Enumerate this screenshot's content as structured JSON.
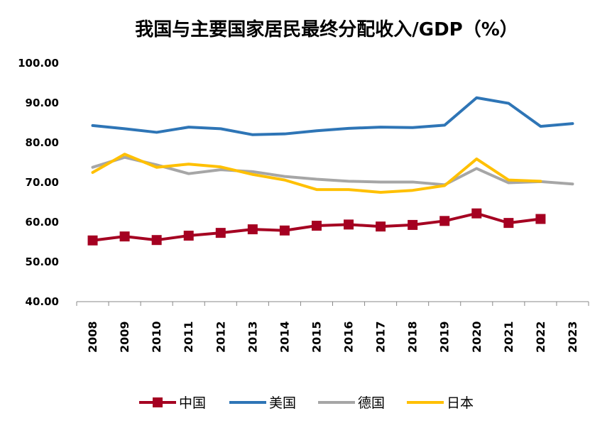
{
  "chart_data": {
    "type": "line",
    "title": "我国与主要国家居民最终分配收入/GDP（%）",
    "xlabel": "",
    "ylabel": "",
    "ylim": [
      40,
      100
    ],
    "yticks": [
      "100.00",
      "90.00",
      "80.00",
      "70.00",
      "60.00",
      "50.00",
      "40.00"
    ],
    "categories": [
      "2008",
      "2009",
      "2010",
      "2011",
      "2012",
      "2013",
      "2014",
      "2015",
      "2016",
      "2017",
      "2018",
      "2019",
      "2020",
      "2021",
      "2022",
      "2023"
    ],
    "legend_position": "bottom",
    "series": [
      {
        "name": "中国",
        "color": "#A50021",
        "marker": "square",
        "values": [
          55.4,
          56.4,
          55.5,
          56.6,
          57.3,
          58.2,
          57.9,
          59.1,
          59.4,
          58.9,
          59.3,
          60.3,
          62.2,
          59.8,
          60.8,
          null
        ]
      },
      {
        "name": "美国",
        "color": "#2E75B6",
        "marker": "none",
        "values": [
          84.3,
          83.5,
          82.6,
          83.9,
          83.5,
          82.0,
          82.2,
          83.0,
          83.6,
          83.9,
          83.8,
          84.4,
          91.3,
          89.9,
          84.1,
          84.8
        ]
      },
      {
        "name": "德国",
        "color": "#A6A6A6",
        "marker": "none",
        "values": [
          73.8,
          76.3,
          74.4,
          72.2,
          73.2,
          72.7,
          71.5,
          70.8,
          70.3,
          70.1,
          70.1,
          69.4,
          73.5,
          69.9,
          70.2,
          69.6
        ]
      },
      {
        "name": "日本",
        "color": "#FFC000",
        "marker": "none",
        "values": [
          72.5,
          77.1,
          73.8,
          74.6,
          73.9,
          72.0,
          70.6,
          68.2,
          68.2,
          67.5,
          68.0,
          69.2,
          75.9,
          70.6,
          70.3,
          null
        ]
      }
    ]
  }
}
